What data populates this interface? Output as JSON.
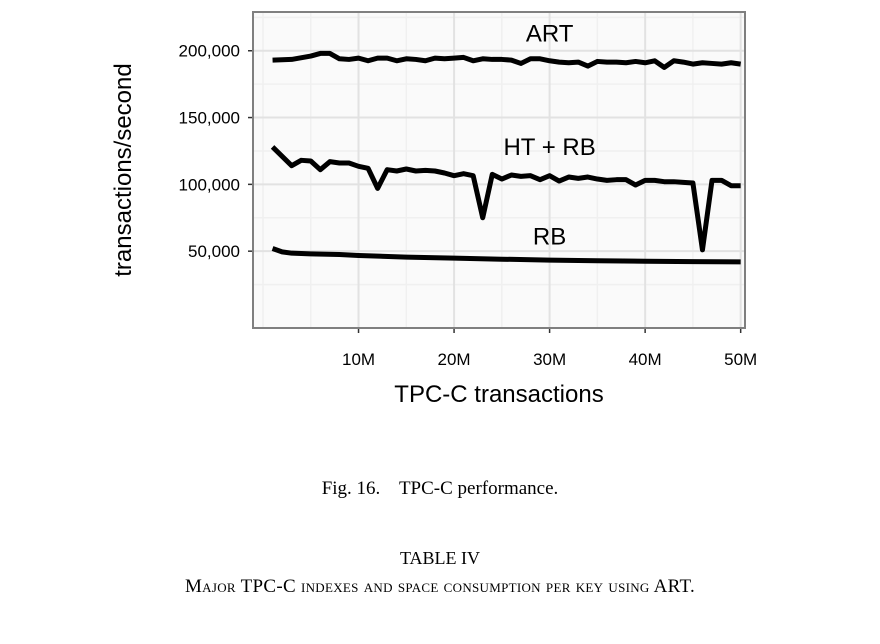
{
  "chart_data": {
    "type": "line",
    "title": "",
    "xlabel": "TPC-C transactions",
    "ylabel": "transactions/second",
    "xlim": [
      0,
      51.5
    ],
    "ylim": [
      -7500,
      229000
    ],
    "x_ticks": [
      {
        "v": 10,
        "label": "10M"
      },
      {
        "v": 20,
        "label": "20M"
      },
      {
        "v": 30,
        "label": "30M"
      },
      {
        "v": 40,
        "label": "40M"
      },
      {
        "v": 50,
        "label": "50M"
      }
    ],
    "y_ticks": [
      {
        "v": 50000,
        "label": "50,000"
      },
      {
        "v": 100000,
        "label": "100,000"
      },
      {
        "v": 150000,
        "label": "150,000"
      },
      {
        "v": 200000,
        "label": "200,000"
      }
    ],
    "grid": true,
    "series": [
      {
        "name": "ART",
        "label_at": [
          30,
          207000
        ],
        "x": [
          1,
          3,
          5,
          6,
          7,
          8,
          9,
          10,
          11,
          12,
          13,
          14,
          15,
          16,
          17,
          18,
          19,
          20,
          21,
          22,
          23,
          24,
          25,
          26,
          27,
          28,
          29,
          30,
          31,
          32,
          33,
          34,
          35,
          36,
          37,
          38,
          39,
          40,
          41,
          42,
          43,
          44,
          45,
          46,
          47,
          48,
          49,
          50
        ],
        "y": [
          193000,
          193500,
          196000,
          198000,
          198000,
          194000,
          193500,
          194500,
          192500,
          194500,
          194500,
          192500,
          194000,
          193500,
          192500,
          194500,
          194000,
          194500,
          195000,
          192500,
          194000,
          193500,
          193500,
          193000,
          190500,
          194000,
          194000,
          192500,
          191500,
          191000,
          191500,
          188500,
          192000,
          191500,
          191500,
          191000,
          192000,
          191000,
          192500,
          187500,
          192500,
          191500,
          190000,
          191000,
          190500,
          190000,
          191000,
          190000
        ]
      },
      {
        "name": "HT + RB",
        "label_at": [
          30,
          122000
        ],
        "x": [
          1,
          2,
          3,
          4,
          5,
          6,
          7,
          8,
          9,
          10,
          11,
          12,
          13,
          14,
          15,
          16,
          17,
          18,
          19,
          20,
          21,
          22,
          23,
          24,
          25,
          26,
          27,
          28,
          29,
          30,
          31,
          32,
          33,
          34,
          35,
          36,
          37,
          38,
          39,
          40,
          41,
          42,
          43,
          44,
          45,
          46,
          47,
          48,
          49,
          50
        ],
        "y": [
          128000,
          121000,
          114000,
          118000,
          117500,
          111000,
          117000,
          116000,
          116000,
          113500,
          112000,
          97000,
          111000,
          110000,
          111500,
          110000,
          110500,
          110000,
          108500,
          106500,
          108000,
          106500,
          75000,
          107500,
          104000,
          107000,
          106000,
          106500,
          103500,
          106500,
          102500,
          105500,
          104500,
          105500,
          104000,
          103000,
          103500,
          103500,
          99500,
          103000,
          103000,
          102000,
          102000,
          101500,
          101000,
          51000,
          103000,
          103000,
          99000,
          99000
        ]
      },
      {
        "name": "RB",
        "label_at": [
          30,
          55000
        ],
        "x": [
          1,
          2,
          3,
          5,
          8,
          10,
          15,
          20,
          25,
          30,
          35,
          40,
          45,
          50
        ],
        "y": [
          52000,
          49500,
          48500,
          48000,
          47500,
          46800,
          45500,
          44800,
          44000,
          43300,
          42800,
          42500,
          42200,
          42000
        ]
      }
    ]
  },
  "caption": "Fig. 16.    TPC-C performance.",
  "table_heading": "TABLE IV",
  "table_title": "Major TPC-C indexes and space consumption per key using ART."
}
